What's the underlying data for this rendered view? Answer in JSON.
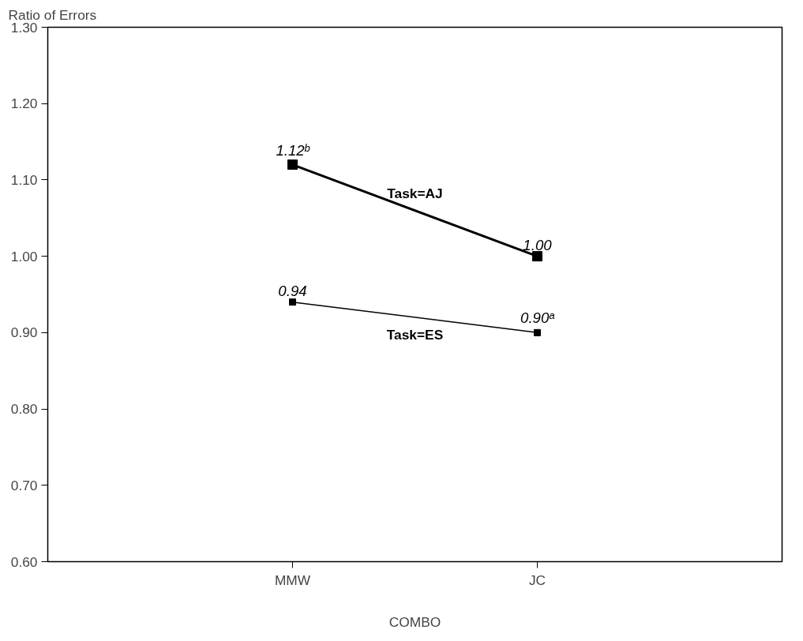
{
  "chart_data": {
    "type": "line",
    "xlabel": "COMBO",
    "ylabel": "Ratio of Errors",
    "categories": [
      "MMW",
      "JC"
    ],
    "series": [
      {
        "name": "Task=AJ",
        "color": "#000000",
        "values": [
          1.12,
          1.0
        ],
        "value_labels": [
          "1.12ᵇ",
          "1.00"
        ]
      },
      {
        "name": "Task=ES",
        "color": "#000000",
        "values": [
          0.94,
          0.9
        ],
        "value_labels": [
          "0.94",
          "0.90ᵃ"
        ]
      }
    ],
    "ylim": [
      0.6,
      1.3
    ],
    "yticks": [
      {
        "value": 0.6,
        "label": "0.60"
      },
      {
        "value": 0.7,
        "label": "0.70"
      },
      {
        "value": 0.8,
        "label": "0.80"
      },
      {
        "value": 0.9,
        "label": "0.90"
      },
      {
        "value": 1.0,
        "label": "1.00"
      },
      {
        "value": 1.1,
        "label": "1.10"
      },
      {
        "value": 1.2,
        "label": "1.20"
      },
      {
        "value": 1.3,
        "label": "1.30"
      }
    ],
    "marker": "square",
    "line_style": "solid"
  }
}
